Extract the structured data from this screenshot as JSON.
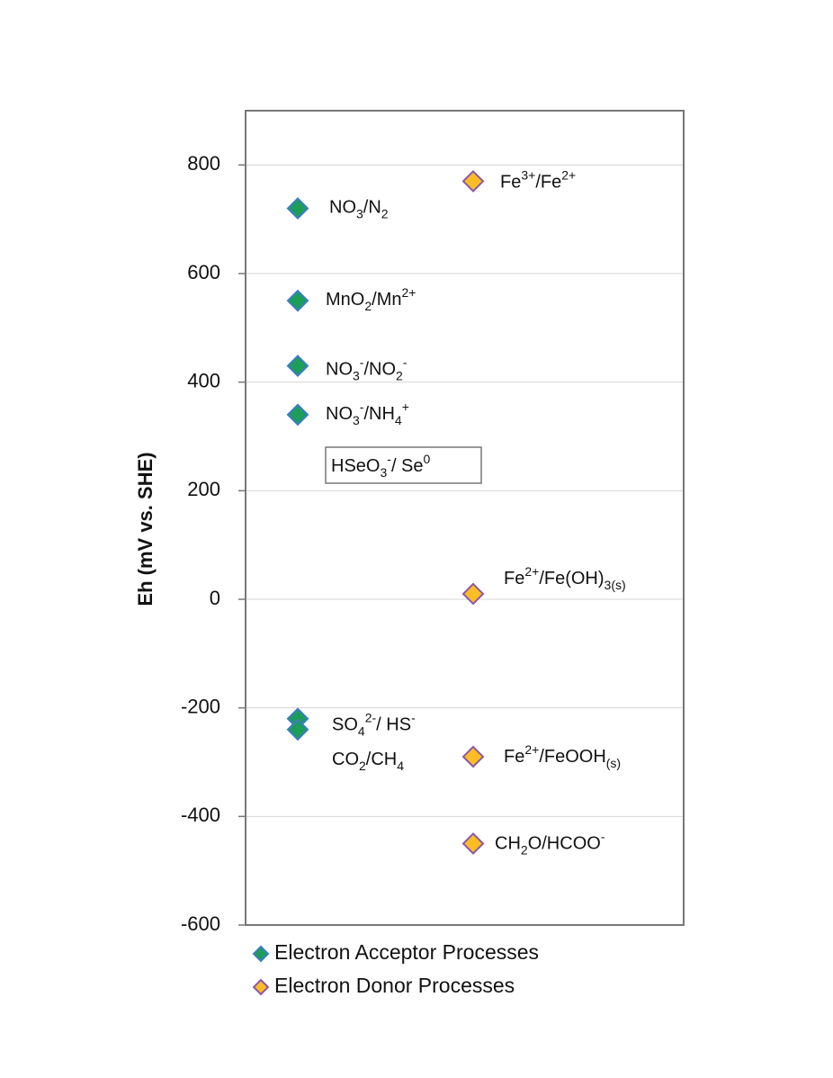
{
  "chart_data": {
    "type": "scatter",
    "y_label": "Eh (mV vs. SHE)",
    "ylim": [
      -600,
      900
    ],
    "yticks": [
      -600,
      -400,
      -200,
      0,
      200,
      400,
      600,
      800
    ],
    "grid": true,
    "series": [
      {
        "name": "Electron Acceptor Processes",
        "color": "#1c9e5a",
        "edge": "#3b7cc4",
        "values": [
          720,
          550,
          430,
          340,
          -220,
          -240
        ],
        "labels": [
          [
            {
              "t": "NO",
              "s": ""
            },
            {
              "t": "3",
              "s": "sub"
            },
            {
              "t": "/N",
              "s": ""
            },
            {
              "t": "2",
              "s": "sub"
            }
          ],
          [
            {
              "t": "MnO",
              "s": ""
            },
            {
              "t": "2",
              "s": "sub"
            },
            {
              "t": "/Mn",
              "s": ""
            },
            {
              "t": "2+",
              "s": "sup"
            }
          ],
          [
            {
              "t": "NO",
              "s": ""
            },
            {
              "t": "3",
              "s": "sub"
            },
            {
              "t": "-",
              "s": "sup"
            },
            {
              "t": "/NO",
              "s": ""
            },
            {
              "t": "2",
              "s": "sub"
            },
            {
              "t": "-",
              "s": "sup"
            }
          ],
          [
            {
              "t": "NO",
              "s": ""
            },
            {
              "t": "3",
              "s": "sub"
            },
            {
              "t": "-",
              "s": "sup"
            },
            {
              "t": "/NH",
              "s": ""
            },
            {
              "t": "4",
              "s": "sub"
            },
            {
              "t": "+",
              "s": "sup"
            }
          ],
          [
            {
              "t": "SO",
              "s": ""
            },
            {
              "t": "4",
              "s": "sub"
            },
            {
              "t": "2-",
              "s": "sup"
            },
            {
              "t": "/ HS",
              "s": ""
            },
            {
              "t": "-",
              "s": "sup"
            }
          ],
          [
            {
              "t": "CO",
              "s": ""
            },
            {
              "t": "2",
              "s": "sub"
            },
            {
              "t": "/CH",
              "s": ""
            },
            {
              "t": "4",
              "s": "sub"
            }
          ]
        ]
      },
      {
        "name": "Electron Donor Processes",
        "color": "#fbbd24",
        "edge": "#8a5aa8",
        "values": [
          770,
          10,
          -290,
          -450
        ],
        "labels": [
          [
            {
              "t": "Fe",
              "s": ""
            },
            {
              "t": "3+",
              "s": "sup"
            },
            {
              "t": "/Fe",
              "s": ""
            },
            {
              "t": "2+",
              "s": "sup"
            }
          ],
          [
            {
              "t": "Fe",
              "s": ""
            },
            {
              "t": "2+",
              "s": "sup"
            },
            {
              "t": "/Fe(OH)",
              "s": ""
            },
            {
              "t": "3(s)",
              "s": "sub"
            }
          ],
          [
            {
              "t": "Fe",
              "s": ""
            },
            {
              "t": "2+",
              "s": "sup"
            },
            {
              "t": "/FeOOH",
              "s": ""
            },
            {
              "t": "(s)",
              "s": "sub"
            }
          ],
          [
            {
              "t": "CH",
              "s": ""
            },
            {
              "t": "2",
              "s": "sub"
            },
            {
              "t": "O/HCOO",
              "s": ""
            },
            {
              "t": "-",
              "s": "sup"
            }
          ]
        ]
      }
    ],
    "annotation": [
      {
        "t": "HSeO",
        "s": ""
      },
      {
        "t": "3",
        "s": "sub"
      },
      {
        "t": "-",
        "s": "sup"
      },
      {
        "t": "/ Se",
        "s": ""
      },
      {
        "t": "0",
        "s": "sup"
      }
    ]
  }
}
